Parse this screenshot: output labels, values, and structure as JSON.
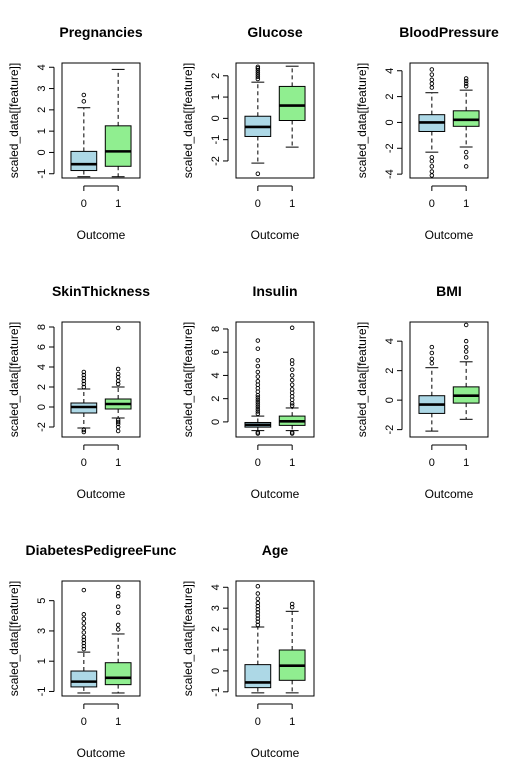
{
  "chart_data": [
    {
      "type": "boxplot",
      "title": "Pregnancies",
      "xlabel": "Outcome",
      "ylabel": "scaled_data[[feature]]",
      "ylim": [
        -1.2,
        4.2
      ],
      "yticks": [
        -1,
        0,
        1,
        2,
        3,
        4
      ],
      "categories": [
        "0",
        "1"
      ],
      "box_colors": [
        "#add8e6",
        "#90ee90"
      ],
      "grid": false,
      "boxes": [
        {
          "whisker_low": -1.14,
          "q1": -0.85,
          "median": -0.55,
          "q3": 0.05,
          "whisker_high": 2.1,
          "outliers": [
            2.4,
            2.7
          ]
        },
        {
          "whisker_low": -1.14,
          "q1": -0.65,
          "median": 0.05,
          "q3": 1.25,
          "whisker_high": 3.9,
          "outliers": []
        }
      ]
    },
    {
      "type": "boxplot",
      "title": "Glucose",
      "xlabel": "Outcome",
      "ylabel": "scaled_data[[feature]]",
      "ylim": [
        -2.8,
        2.6
      ],
      "yticks": [
        -2,
        -1,
        0,
        1,
        2
      ],
      "categories": [
        "0",
        "1"
      ],
      "box_colors": [
        "#add8e6",
        "#90ee90"
      ],
      "grid": false,
      "boxes": [
        {
          "whisker_low": -2.1,
          "q1": -0.85,
          "median": -0.4,
          "q3": 0.1,
          "whisker_high": 1.7,
          "outliers": [
            -2.6,
            1.85,
            1.95,
            2.05,
            2.15,
            2.25,
            2.35,
            2.42
          ]
        },
        {
          "whisker_low": -1.35,
          "q1": -0.1,
          "median": 0.6,
          "q3": 1.5,
          "whisker_high": 2.45,
          "outliers": []
        }
      ]
    },
    {
      "type": "boxplot",
      "title": "BloodPressure",
      "xlabel": "Outcome",
      "ylabel": "scaled_data[[feature]]",
      "ylim": [
        -4.3,
        4.6
      ],
      "yticks": [
        -4,
        -2,
        0,
        2,
        4
      ],
      "categories": [
        "0",
        "1"
      ],
      "box_colors": [
        "#add8e6",
        "#90ee90"
      ],
      "grid": false,
      "boxes": [
        {
          "whisker_low": -2.3,
          "q1": -0.7,
          "median": 0.0,
          "q3": 0.6,
          "whisker_high": 2.3,
          "outliers": [
            -2.7,
            -3.0,
            -3.4,
            -3.8,
            -4.1,
            2.7,
            3.0,
            3.3,
            3.7,
            4.1
          ]
        },
        {
          "whisker_low": -1.9,
          "q1": -0.3,
          "median": 0.2,
          "q3": 0.9,
          "whisker_high": 2.5,
          "outliers": [
            -2.3,
            -2.7,
            -3.4,
            2.8,
            3.0,
            3.2,
            3.4
          ]
        }
      ]
    },
    {
      "type": "boxplot",
      "title": "SkinThickness",
      "xlabel": "Outcome",
      "ylabel": "scaled_data[[feature]]",
      "ylim": [
        -3.0,
        8.5
      ],
      "yticks": [
        -2,
        0,
        2,
        4,
        6,
        8
      ],
      "categories": [
        "0",
        "1"
      ],
      "box_colors": [
        "#add8e6",
        "#90ee90"
      ],
      "grid": false,
      "boxes": [
        {
          "whisker_low": -2.1,
          "q1": -0.6,
          "median": 0.0,
          "q3": 0.4,
          "whisker_high": 1.8,
          "outliers": [
            -2.3,
            -2.5,
            2.0,
            2.3,
            2.6,
            2.9,
            3.2,
            3.5
          ]
        },
        {
          "whisker_low": -1.1,
          "q1": -0.2,
          "median": 0.3,
          "q3": 0.8,
          "whisker_high": 2.0,
          "outliers": [
            -1.3,
            -1.5,
            -1.7,
            -2.0,
            -2.4,
            2.3,
            2.6,
            3.0,
            3.3,
            3.8,
            7.9
          ]
        }
      ]
    },
    {
      "type": "boxplot",
      "title": "Insulin",
      "xlabel": "Outcome",
      "ylabel": "scaled_data[[feature]]",
      "ylim": [
        -1.3,
        8.6
      ],
      "yticks": [
        0,
        2,
        4,
        6,
        8
      ],
      "categories": [
        "0",
        "1"
      ],
      "box_colors": [
        "#add8e6",
        "#90ee90"
      ],
      "grid": false,
      "boxes": [
        {
          "whisker_low": -0.75,
          "q1": -0.45,
          "median": -0.25,
          "q3": -0.05,
          "whisker_high": 0.5,
          "outliers": [
            -0.9,
            -1.0,
            0.7,
            0.9,
            1.1,
            1.3,
            1.5,
            1.7,
            1.9,
            2.1,
            2.3,
            2.6,
            2.9,
            3.2,
            3.5,
            3.9,
            4.3,
            4.8,
            5.3,
            6.3,
            7.0
          ]
        },
        {
          "whisker_low": -0.75,
          "q1": -0.3,
          "median": 0.05,
          "q3": 0.5,
          "whisker_high": 1.2,
          "outliers": [
            -0.9,
            -1.0,
            1.4,
            1.6,
            1.9,
            2.2,
            2.5,
            2.8,
            3.2,
            3.6,
            4.0,
            4.5,
            5.0,
            5.3,
            8.1
          ]
        }
      ]
    },
    {
      "type": "boxplot",
      "title": "BMI",
      "xlabel": "Outcome",
      "ylabel": "scaled_data[[feature]]",
      "ylim": [
        -2.5,
        5.3
      ],
      "yticks": [
        -2,
        0,
        2,
        4
      ],
      "categories": [
        "0",
        "1"
      ],
      "box_colors": [
        "#add8e6",
        "#90ee90"
      ],
      "grid": false,
      "boxes": [
        {
          "whisker_low": -2.1,
          "q1": -0.9,
          "median": -0.3,
          "q3": 0.3,
          "whisker_high": 2.2,
          "outliers": [
            2.5,
            2.8,
            3.2,
            3.6
          ]
        },
        {
          "whisker_low": -1.3,
          "q1": -0.2,
          "median": 0.3,
          "q3": 0.9,
          "whisker_high": 2.6,
          "outliers": [
            2.9,
            3.3,
            3.6,
            4.0,
            5.1
          ]
        }
      ]
    },
    {
      "type": "boxplot",
      "title": "DiabetesPedigreeFunc",
      "xlabel": "Outcome",
      "ylabel": "scaled_data[[feature]]",
      "ylim": [
        -1.3,
        6.3
      ],
      "yticks": [
        -1,
        1,
        3,
        5
      ],
      "categories": [
        "0",
        "1"
      ],
      "box_colors": [
        "#add8e6",
        "#90ee90"
      ],
      "grid": false,
      "boxes": [
        {
          "whisker_low": -1.1,
          "q1": -0.7,
          "median": -0.35,
          "q3": 0.35,
          "whisker_high": 1.6,
          "outliers": [
            1.8,
            2.0,
            2.2,
            2.4,
            2.6,
            2.9,
            3.2,
            3.5,
            3.8,
            4.1,
            5.7
          ]
        },
        {
          "whisker_low": -1.1,
          "q1": -0.55,
          "median": -0.1,
          "q3": 0.9,
          "whisker_high": 2.8,
          "outliers": [
            3.1,
            3.4,
            4.2,
            4.6,
            5.3,
            5.5,
            5.9
          ]
        }
      ]
    },
    {
      "type": "boxplot",
      "title": "Age",
      "xlabel": "Outcome",
      "ylabel": "scaled_data[[feature]]",
      "ylim": [
        -1.2,
        4.3
      ],
      "yticks": [
        -1,
        0,
        1,
        2,
        3,
        4
      ],
      "categories": [
        "0",
        "1"
      ],
      "box_colors": [
        "#add8e6",
        "#90ee90"
      ],
      "grid": false,
      "boxes": [
        {
          "whisker_low": -1.05,
          "q1": -0.8,
          "median": -0.55,
          "q3": 0.3,
          "whisker_high": 2.1,
          "outliers": [
            2.2,
            2.35,
            2.5,
            2.65,
            2.8,
            2.95,
            3.1,
            3.25,
            3.45,
            3.7,
            4.05
          ]
        },
        {
          "whisker_low": -1.05,
          "q1": -0.45,
          "median": 0.25,
          "q3": 1.0,
          "whisker_high": 2.85,
          "outliers": [
            3.05,
            3.2
          ]
        }
      ]
    }
  ]
}
